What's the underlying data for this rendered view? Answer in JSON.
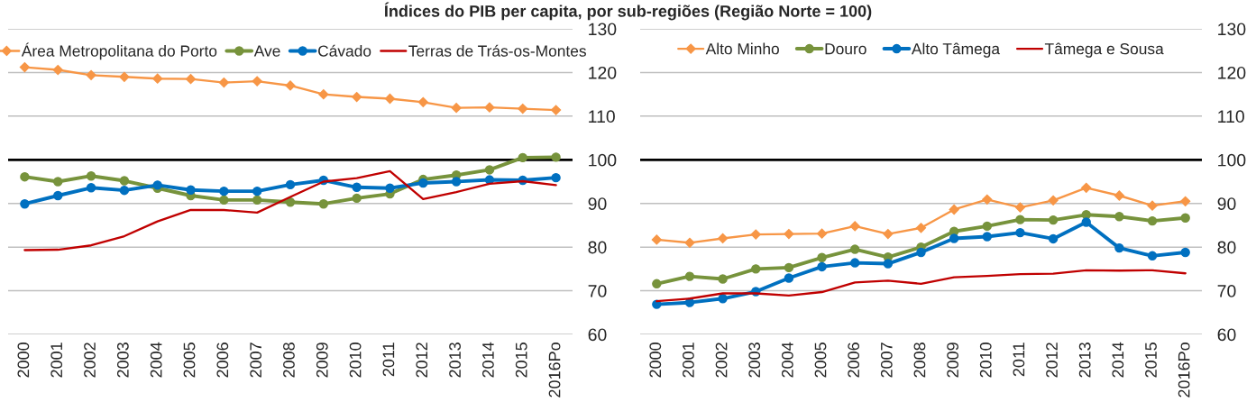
{
  "chart_data": [
    {
      "type": "line",
      "title": "Índices do PIB per capita, por sub-regiões (Região Norte = 100)",
      "categories": [
        "2000",
        "2001",
        "2002",
        "2003",
        "2004",
        "2005",
        "2006",
        "2007",
        "2008",
        "2009",
        "2010",
        "2011",
        "2012",
        "2013",
        "2014",
        "2015",
        "2016Po"
      ],
      "series": [
        {
          "name": "Área Metropolitana do Porto",
          "color": "#f79646",
          "marker": "diamond",
          "values": [
            121.2,
            120.6,
            119.4,
            119.0,
            118.6,
            118.5,
            117.7,
            118.0,
            117.0,
            115.0,
            114.4,
            114.0,
            113.2,
            111.9,
            112.0,
            111.7,
            111.4
          ]
        },
        {
          "name": "Ave",
          "color": "#77933c",
          "marker": "circle",
          "values": [
            96.1,
            95.0,
            96.3,
            95.2,
            93.5,
            91.8,
            90.8,
            90.8,
            90.3,
            89.9,
            91.2,
            92.2,
            95.5,
            96.5,
            97.7,
            100.5,
            100.6
          ]
        },
        {
          "name": "Cávado",
          "color": "#0070c0",
          "marker": "circle",
          "values": [
            89.9,
            91.8,
            93.6,
            93.0,
            94.2,
            93.1,
            92.8,
            92.8,
            94.3,
            95.3,
            93.7,
            93.5,
            94.7,
            95.0,
            95.4,
            95.3,
            95.9
          ]
        },
        {
          "name": "Terras de Trás-os-Montes",
          "color": "#c00000",
          "marker": "none",
          "values": [
            79.3,
            79.4,
            80.4,
            82.5,
            85.9,
            88.5,
            88.5,
            87.9,
            91.5,
            95.0,
            95.8,
            97.4,
            91.0,
            92.6,
            94.5,
            95.1,
            94.2
          ]
        }
      ],
      "ylim": [
        60,
        130
      ],
      "yticks": [
        60,
        70,
        80,
        90,
        100,
        110,
        120,
        130
      ],
      "ref_lines": [
        {
          "axis": "y",
          "value": 100,
          "color": "#000000"
        }
      ],
      "grid": "y",
      "legend": "top"
    },
    {
      "type": "line",
      "categories": [
        "2000",
        "2001",
        "2002",
        "2003",
        "2004",
        "2005",
        "2006",
        "2007",
        "2008",
        "2009",
        "2010",
        "2011",
        "2012",
        "2013",
        "2014",
        "2015",
        "2016Po"
      ],
      "series": [
        {
          "name": "Alto Minho",
          "color": "#f79646",
          "marker": "diamond",
          "values": [
            81.7,
            81.0,
            82.0,
            82.9,
            83.0,
            83.1,
            84.8,
            83.0,
            84.4,
            88.6,
            90.9,
            89.1,
            90.7,
            93.6,
            91.8,
            89.5,
            90.5
          ]
        },
        {
          "name": "Douro",
          "color": "#77933c",
          "marker": "circle",
          "values": [
            71.6,
            73.3,
            72.7,
            75.0,
            75.3,
            77.6,
            79.5,
            77.7,
            80.0,
            83.6,
            84.8,
            86.3,
            86.2,
            87.4,
            87.0,
            86.0,
            86.7
          ]
        },
        {
          "name": "Alto Tâmega",
          "color": "#0070c0",
          "marker": "circle",
          "values": [
            66.9,
            67.3,
            68.2,
            69.8,
            72.9,
            75.5,
            76.4,
            76.2,
            78.8,
            82.0,
            82.4,
            83.3,
            81.9,
            85.7,
            79.8,
            78.0,
            78.8
          ]
        },
        {
          "name": "Tâmega e Sousa",
          "color": "#c00000",
          "marker": "none",
          "values": [
            67.6,
            68.2,
            69.4,
            69.4,
            68.9,
            69.7,
            71.9,
            72.3,
            71.6,
            73.1,
            73.4,
            73.8,
            73.9,
            74.7,
            74.6,
            74.7,
            74.0
          ]
        }
      ],
      "ylim": [
        60,
        130
      ],
      "yticks": [
        60,
        70,
        80,
        90,
        100,
        110,
        120,
        130
      ],
      "ref_lines": [
        {
          "axis": "y",
          "value": 100,
          "color": "#000000"
        }
      ],
      "grid": "y",
      "legend": "top"
    }
  ]
}
